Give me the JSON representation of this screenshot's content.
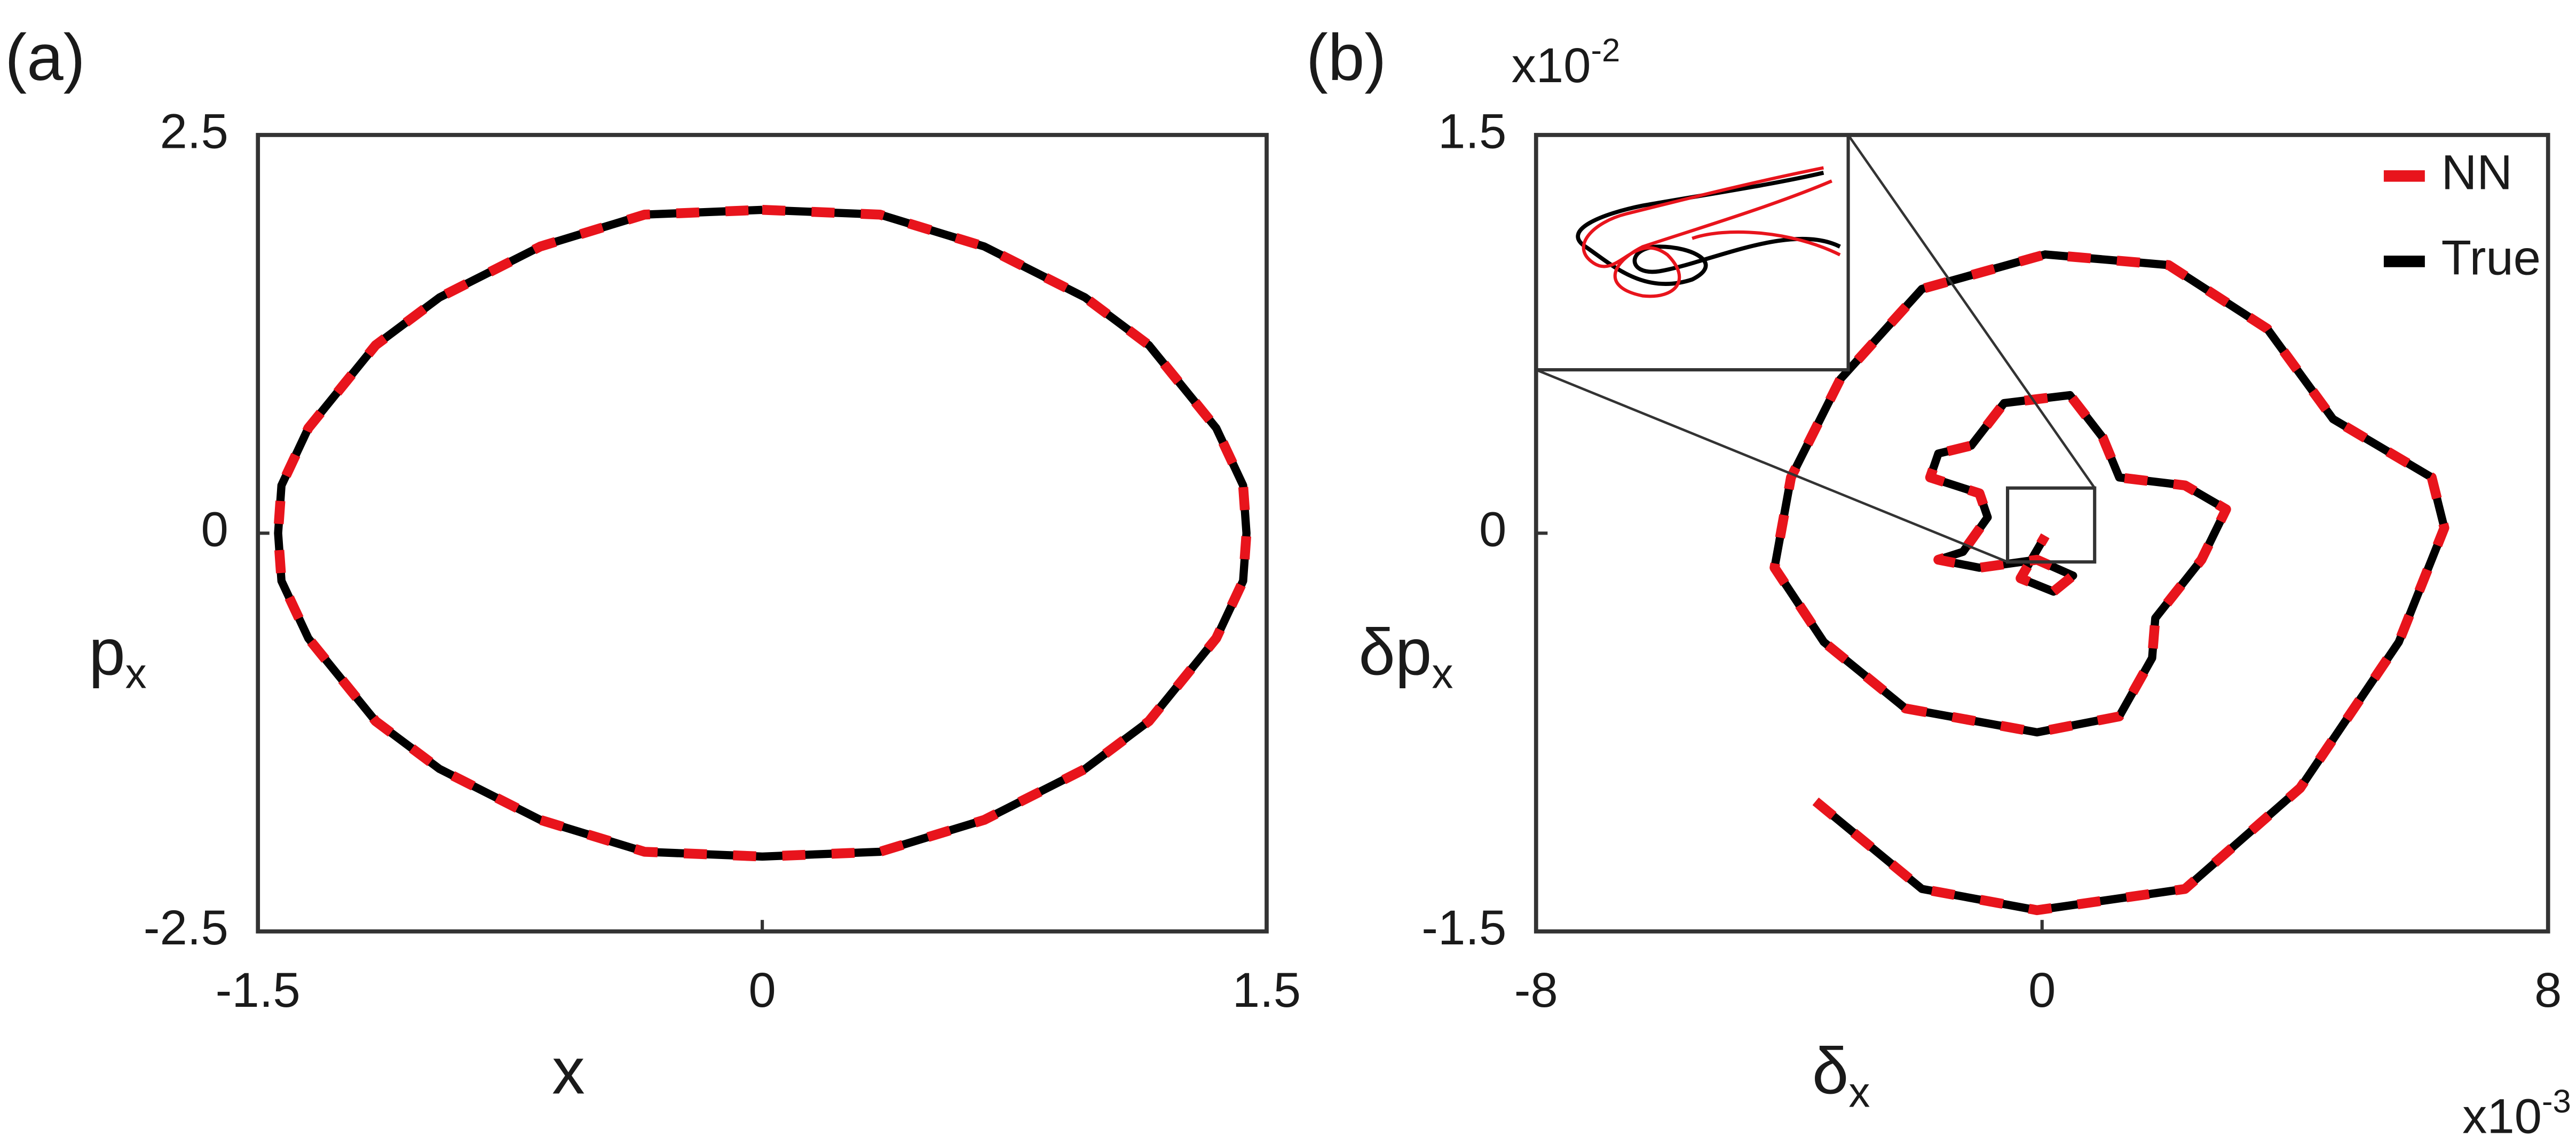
{
  "chart_data": [
    {
      "type": "line",
      "panel_label": "(a)",
      "xlabel": "x",
      "ylabel": "p",
      "ylabel_sub": "x",
      "xlim": [
        -1.5,
        1.5
      ],
      "ylim": [
        -2.5,
        2.5
      ],
      "xticks": [
        -1.5,
        0,
        1.5
      ],
      "yticks": [
        -2.5,
        0,
        2.5
      ],
      "grid": false,
      "series": [
        {
          "color": "#000000",
          "style": "solid",
          "x": [
            0,
            0.35,
            0.66,
            0.96,
            1.15,
            1.35,
            1.43,
            1.44,
            1.43,
            1.35,
            1.15,
            0.96,
            0.66,
            0.35,
            0,
            -0.35,
            -0.66,
            -0.96,
            -1.15,
            -1.35,
            -1.43,
            -1.44,
            -1.43,
            -1.35,
            -1.15,
            -0.96,
            -0.66,
            -0.35,
            0
          ],
          "y": [
            2.03,
            2.0,
            1.8,
            1.48,
            1.18,
            0.66,
            0.3,
            0,
            -0.3,
            -0.66,
            -1.18,
            -1.48,
            -1.8,
            -2.0,
            -2.03,
            -2.0,
            -1.8,
            -1.48,
            -1.18,
            -0.66,
            -0.3,
            0,
            0.3,
            0.66,
            1.18,
            1.48,
            1.8,
            2.0,
            2.03
          ]
        },
        {
          "color": "#e8141c",
          "style": "dashed",
          "x": [
            0,
            0.35,
            0.66,
            0.96,
            1.15,
            1.35,
            1.43,
            1.44,
            1.43,
            1.35,
            1.15,
            0.96,
            0.66,
            0.35,
            0,
            -0.35,
            -0.66,
            -0.96,
            -1.15,
            -1.35,
            -1.43,
            -1.44,
            -1.43,
            -1.35,
            -1.15,
            -0.96,
            -0.66,
            -0.35,
            0
          ],
          "y": [
            2.03,
            2.0,
            1.8,
            1.48,
            1.18,
            0.66,
            0.3,
            0,
            -0.3,
            -0.66,
            -1.18,
            -1.48,
            -1.8,
            -2.0,
            -2.03,
            -2.0,
            -1.8,
            -1.48,
            -1.18,
            -0.66,
            -0.3,
            0,
            0.3,
            0.66,
            1.18,
            1.48,
            1.8,
            2.0,
            2.03
          ]
        }
      ]
    },
    {
      "type": "line",
      "panel_label": "(b)",
      "xlabel": "δ",
      "xlabel_sub": "x",
      "ylabel": "δp",
      "ylabel_sub": "x",
      "x_multiplier": {
        "base": "x10",
        "exponent": "-3"
      },
      "y_multiplier": {
        "base": "x10",
        "exponent": "-2"
      },
      "xlim": [
        -8,
        8
      ],
      "ylim": [
        -1.5,
        1.5
      ],
      "xticks": [
        -8,
        0,
        8
      ],
      "yticks": [
        -1.5,
        0,
        1.5
      ],
      "grid": false,
      "legend": "upper right",
      "series": [
        {
          "name": "NN",
          "color": "#e8141c",
          "style": "dashed",
          "x": [
            -3.58,
            -1.9,
            -0.08,
            2.26,
            4.08,
            5.64,
            6.36,
            6.16,
            4.6,
            3.56,
            2.0,
            0.05,
            -1.9,
            -3.19,
            -3.97,
            -4.23,
            -3.45,
            -2.16,
            -0.08,
            1.22,
            1.74,
            1.79,
            2.52,
            2.91,
            2.26,
            1.22,
            0.96,
            0.44,
            -0.6,
            -1.12,
            -1.64,
            -1.77,
            -0.99,
            -0.86,
            -1.25,
            -1.64,
            -0.99,
            -0.08,
            0.49,
            0.18,
            -0.34,
            0.05
          ],
          "y": [
            -1.01,
            -1.34,
            -1.42,
            -1.34,
            -0.96,
            -0.41,
            0.02,
            0.21,
            0.43,
            0.77,
            1.01,
            1.05,
            0.92,
            0.58,
            0.21,
            -0.13,
            -0.41,
            -0.66,
            -0.75,
            -0.69,
            -0.47,
            -0.32,
            -0.1,
            0.09,
            0.18,
            0.21,
            0.36,
            0.52,
            0.49,
            0.33,
            0.3,
            0.21,
            0.15,
            0.06,
            -0.07,
            -0.1,
            -0.13,
            -0.1,
            -0.16,
            -0.22,
            -0.17,
            -0.01
          ]
        },
        {
          "name": "True",
          "color": "#000000",
          "style": "solid",
          "x": [
            -3.58,
            -1.9,
            -0.08,
            2.26,
            4.08,
            5.64,
            6.36,
            6.16,
            4.6,
            3.56,
            2.0,
            0.05,
            -1.9,
            -3.19,
            -3.97,
            -4.23,
            -3.45,
            -2.16,
            -0.08,
            1.22,
            1.74,
            1.79,
            2.52,
            2.91,
            2.26,
            1.22,
            0.96,
            0.44,
            -0.6,
            -1.12,
            -1.64,
            -1.77,
            -0.99,
            -0.86,
            -1.25,
            -1.64,
            -0.99,
            -0.08,
            0.49,
            0.18,
            -0.34,
            0.05
          ],
          "y": [
            -1.01,
            -1.34,
            -1.42,
            -1.34,
            -0.96,
            -0.41,
            0.02,
            0.21,
            0.43,
            0.77,
            1.01,
            1.05,
            0.92,
            0.58,
            0.21,
            -0.13,
            -0.41,
            -0.66,
            -0.75,
            -0.69,
            -0.47,
            -0.32,
            -0.1,
            0.09,
            0.18,
            0.21,
            0.36,
            0.52,
            0.49,
            0.33,
            0.3,
            0.21,
            0.15,
            0.06,
            -0.07,
            -0.1,
            -0.13,
            -0.1,
            -0.16,
            -0.22,
            -0.17,
            -0.01
          ]
        }
      ]
    }
  ]
}
